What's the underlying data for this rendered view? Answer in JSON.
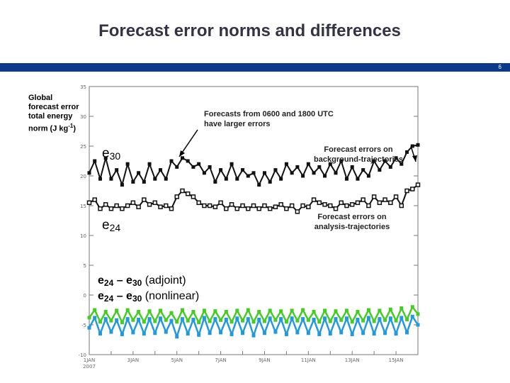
{
  "slide": {
    "title": "Forecast error norms and differences",
    "page_number": "6",
    "accent_color": "#0a3a8c"
  },
  "side_label": {
    "line1": "Global",
    "line2": "forecast error",
    "line3": "total energy",
    "line4_prefix": "norm (J kg",
    "line4_sup": "-1",
    "line4_suffix": ")"
  },
  "annotations": {
    "top_line1": "Forecasts from 0600 and 1800 UTC",
    "top_line2": "have larger errors",
    "bg_line1": "Forecast errors on",
    "bg_line2": "background-trajectories",
    "an_line1": "Forecast errors on",
    "an_line2": "analysis-trajectories"
  },
  "labels": {
    "e30_base": "e",
    "e30_sub": "30",
    "e24_base": "e",
    "e24_sub": "24",
    "adj_e1": "e",
    "adj_s1": "24",
    "adj_dash": " – e",
    "adj_s2": "30",
    "adj_text": " (adjoint)",
    "nl_e1": "e",
    "nl_s1": "24",
    "nl_dash": " – e",
    "nl_s2": "30",
    "nl_text": " (nonlinear)"
  },
  "chart_data": {
    "type": "line",
    "title": "",
    "xlabel": "",
    "ylabel": "",
    "ylim": [
      -10,
      35
    ],
    "yticks": [
      -10,
      -5,
      0,
      5,
      10,
      15,
      20,
      25,
      30,
      35
    ],
    "xlim": [
      1,
      16
    ],
    "xtick_days": [
      1,
      3,
      5,
      7,
      9,
      11,
      13,
      15
    ],
    "xtick_labels": [
      "1JAN",
      "3JAN",
      "5JAN",
      "7JAN",
      "9JAN",
      "11JAN",
      "13JAN",
      "15JAN"
    ],
    "xtick_year": "2007",
    "grid": false,
    "colors": {
      "e30": "#111111",
      "e24": "#111111",
      "adjoint": "#44cc22",
      "nonlinear": "#2299dd"
    },
    "series": [
      {
        "name": "e30",
        "x": [
          1,
          1.25,
          1.5,
          1.75,
          2,
          2.25,
          2.5,
          2.75,
          3,
          3.25,
          3.5,
          3.75,
          4,
          4.25,
          4.5,
          4.75,
          5,
          5.25,
          5.5,
          5.75,
          6,
          6.25,
          6.5,
          6.75,
          7,
          7.25,
          7.5,
          7.75,
          8,
          8.25,
          8.5,
          8.75,
          9,
          9.25,
          9.5,
          9.75,
          10,
          10.25,
          10.5,
          10.75,
          11,
          11.25,
          11.5,
          11.75,
          12,
          12.25,
          12.5,
          12.75,
          13,
          13.25,
          13.5,
          13.75,
          14,
          14.25,
          14.5,
          14.75,
          15,
          15.25,
          15.5,
          15.75,
          16
        ],
        "values": [
          20.5,
          22.5,
          19.5,
          23,
          19.5,
          21,
          18.5,
          22,
          19,
          20.5,
          19,
          22,
          19.5,
          21,
          19.5,
          22.5,
          21.5,
          23,
          22.5,
          21.5,
          22,
          20.5,
          21.5,
          19,
          21,
          19.5,
          22,
          19.5,
          21,
          20,
          20.5,
          18.5,
          20.5,
          19,
          21,
          19.5,
          22,
          20.5,
          21.5,
          20,
          22,
          20.5,
          21.5,
          20,
          22,
          20.5,
          22.5,
          19.5,
          21.5,
          19.5,
          21,
          20,
          22.5,
          21,
          22.5,
          21.5,
          23,
          22,
          24,
          25,
          25.2
        ]
      },
      {
        "name": "e24",
        "x": [
          1,
          1.25,
          1.5,
          1.75,
          2,
          2.25,
          2.5,
          2.75,
          3,
          3.25,
          3.5,
          3.75,
          4,
          4.25,
          4.5,
          4.75,
          5,
          5.25,
          5.5,
          5.75,
          6,
          6.25,
          6.5,
          6.75,
          7,
          7.25,
          7.5,
          7.75,
          8,
          8.25,
          8.5,
          8.75,
          9,
          9.25,
          9.5,
          9.75,
          10,
          10.25,
          10.5,
          10.75,
          11,
          11.25,
          11.5,
          11.75,
          12,
          12.25,
          12.5,
          12.75,
          13,
          13.25,
          13.5,
          13.75,
          14,
          14.25,
          14.5,
          14.75,
          15,
          15.25,
          15.5,
          15.75,
          16
        ],
        "values": [
          15.5,
          16,
          14.5,
          15.2,
          14.5,
          15,
          14.5,
          15,
          15.5,
          14.8,
          16,
          15.2,
          15.5,
          14.8,
          15,
          14.5,
          16.5,
          17.5,
          17,
          16.5,
          15.5,
          15,
          15,
          14.8,
          15.5,
          14.5,
          15.2,
          14.5,
          15,
          14.5,
          15,
          14.5,
          15,
          14.5,
          14.8,
          15.2,
          14.5,
          15,
          14,
          15,
          14.8,
          16,
          15.5,
          15.2,
          15,
          14.5,
          15.5,
          15,
          15.2,
          15.5,
          16,
          15,
          16.5,
          15.5,
          16,
          15.5,
          16.5,
          15,
          17.5,
          17.8,
          18.5
        ]
      },
      {
        "name": "e24 – e30 (adjoint)",
        "x": [
          1,
          1.25,
          1.5,
          1.75,
          2,
          2.25,
          2.5,
          2.75,
          3,
          3.25,
          3.5,
          3.75,
          4,
          4.25,
          4.5,
          4.75,
          5,
          5.25,
          5.5,
          5.75,
          6,
          6.25,
          6.5,
          6.75,
          7,
          7.25,
          7.5,
          7.75,
          8,
          8.25,
          8.5,
          8.75,
          9,
          9.25,
          9.5,
          9.75,
          10,
          10.25,
          10.5,
          10.75,
          11,
          11.25,
          11.5,
          11.75,
          12,
          12.25,
          12.5,
          12.75,
          13,
          13.25,
          13.5,
          13.75,
          14,
          14.25,
          14.5,
          14.75,
          15,
          15.25,
          15.5,
          15.75,
          16
        ],
        "values": [
          -3.8,
          -2.5,
          -4.5,
          -2.8,
          -4.3,
          -2.6,
          -4.6,
          -2.5,
          -4.2,
          -2.8,
          -4.5,
          -2.7,
          -4.4,
          -2.6,
          -4.2,
          -3,
          -4.5,
          -2.5,
          -4.3,
          -2.8,
          -4.6,
          -2.6,
          -4.4,
          -2.7,
          -4.2,
          -2.8,
          -4.5,
          -2.6,
          -4.3,
          -2.5,
          -4.5,
          -2.8,
          -4.4,
          -2.6,
          -4.2,
          -2.7,
          -4.5,
          -2.6,
          -4.3,
          -2.5,
          -4.2,
          -2.8,
          -4.5,
          -2.6,
          -4.4,
          -2.7,
          -4.2,
          -2.6,
          -4.5,
          -2.8,
          -4.3,
          -2.5,
          -4.4,
          -2.6,
          -4.2,
          -2.4,
          -4.3,
          -2.2,
          -4.1,
          -2.0,
          -3.2
        ]
      },
      {
        "name": "e24 – e30 (nonlinear)",
        "x": [
          1,
          1.25,
          1.5,
          1.75,
          2,
          2.25,
          2.5,
          2.75,
          3,
          3.25,
          3.5,
          3.75,
          4,
          4.25,
          4.5,
          4.75,
          5,
          5.25,
          5.5,
          5.75,
          6,
          6.25,
          6.5,
          6.75,
          7,
          7.25,
          7.5,
          7.75,
          8,
          8.25,
          8.5,
          8.75,
          9,
          9.25,
          9.5,
          9.75,
          10,
          10.25,
          10.5,
          10.75,
          11,
          11.25,
          11.5,
          11.75,
          12,
          12.25,
          12.5,
          12.75,
          13,
          13.25,
          13.5,
          13.75,
          14,
          14.25,
          14.5,
          14.75,
          15,
          15.25,
          15.5,
          15.75,
          16
        ],
        "values": [
          -5.5,
          -3.8,
          -6.5,
          -4,
          -6.2,
          -4.2,
          -6.6,
          -4,
          -6.3,
          -4.1,
          -6.5,
          -4,
          -6.4,
          -3.9,
          -6.2,
          -4.3,
          -7,
          -4,
          -6.5,
          -4.1,
          -6.7,
          -3.8,
          -6.4,
          -4,
          -6.3,
          -4.1,
          -6.6,
          -3.9,
          -6.4,
          -4,
          -6.8,
          -4.1,
          -6.4,
          -3.9,
          -6.2,
          -4,
          -6.6,
          -3.9,
          -6.3,
          -4,
          -6.4,
          -4.1,
          -6.6,
          -3.9,
          -6.5,
          -4,
          -6.3,
          -3.9,
          -6.6,
          -4.1,
          -6.4,
          -3.8,
          -6.5,
          -4,
          -6.4,
          -3.9,
          -6.5,
          -3.8,
          -6.3,
          -3.6,
          -5.0
        ]
      }
    ]
  }
}
